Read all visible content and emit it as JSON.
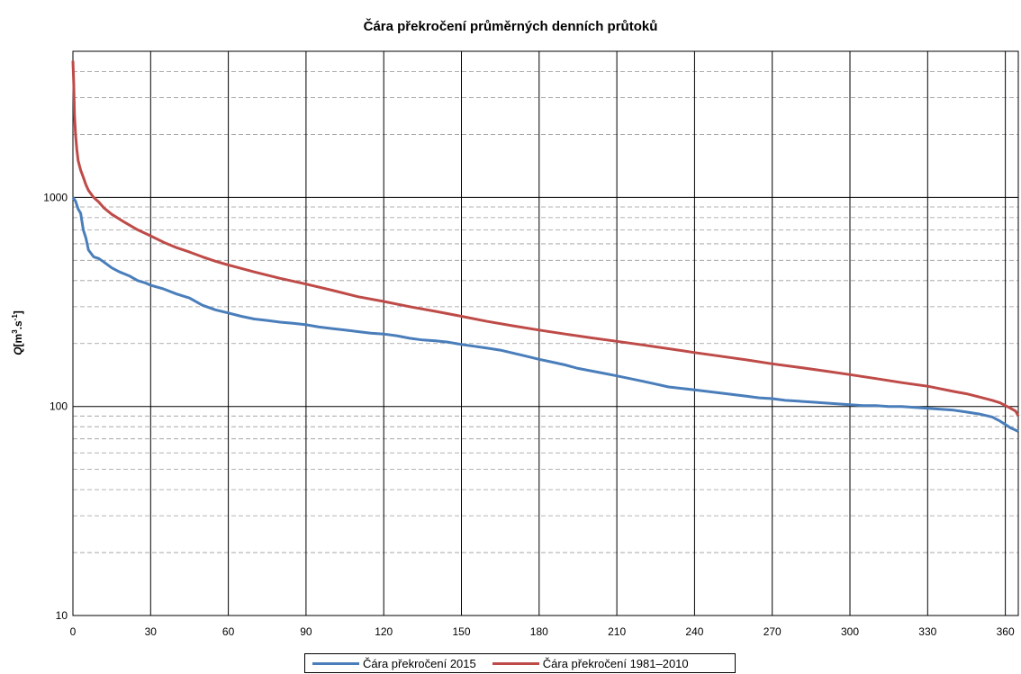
{
  "chart_data": {
    "type": "line",
    "title": "Čára překročení průměrných denních průtoků",
    "ylabel_main": "Q",
    "ylabel_unit_a": "[m",
    "ylabel_sup_a": "3",
    "ylabel_unit_b": ".s",
    "ylabel_sup_b": "-1",
    "ylabel_unit_c": "]",
    "y_scale": "log",
    "ylim": [
      10,
      5000
    ],
    "xlim": [
      0,
      365
    ],
    "x_ticks": [
      0,
      30,
      60,
      90,
      120,
      150,
      180,
      210,
      240,
      270,
      300,
      330,
      360
    ],
    "x_tick_labels": [
      "0",
      "30",
      "60",
      "90",
      "120",
      "150",
      "180",
      "210",
      "240",
      "270",
      "300",
      "330",
      "360"
    ],
    "y_ticks": [
      10,
      100,
      1000
    ],
    "y_tick_labels": [
      "10",
      "100",
      "1000"
    ],
    "grid": true,
    "legend_position": "bottom",
    "series": [
      {
        "name": "Čára překročení 2015",
        "color": "#4a7ebb",
        "x": [
          0,
          1,
          2,
          3,
          4,
          5,
          6,
          8,
          10,
          12,
          15,
          18,
          20,
          22,
          25,
          28,
          30,
          35,
          40,
          45,
          50,
          55,
          60,
          65,
          70,
          75,
          80,
          85,
          90,
          95,
          100,
          105,
          110,
          115,
          120,
          125,
          130,
          135,
          140,
          145,
          150,
          155,
          160,
          165,
          170,
          175,
          180,
          185,
          190,
          195,
          200,
          205,
          210,
          215,
          220,
          225,
          230,
          235,
          240,
          245,
          250,
          255,
          260,
          265,
          270,
          275,
          280,
          285,
          290,
          295,
          300,
          305,
          310,
          315,
          320,
          325,
          330,
          335,
          340,
          345,
          350,
          355,
          358,
          360,
          362,
          365
        ],
        "values": [
          1000,
          960,
          880,
          840,
          700,
          640,
          560,
          520,
          510,
          490,
          460,
          440,
          430,
          420,
          400,
          390,
          380,
          365,
          345,
          330,
          305,
          290,
          280,
          270,
          262,
          258,
          253,
          250,
          246,
          240,
          236,
          232,
          228,
          224,
          222,
          218,
          212,
          208,
          206,
          203,
          198,
          194,
          190,
          186,
          180,
          174,
          168,
          163,
          158,
          152,
          148,
          144,
          140,
          136,
          132,
          128,
          124,
          122,
          120,
          118,
          116,
          114,
          112,
          110,
          109,
          107,
          106,
          105,
          104,
          103,
          102,
          101,
          101,
          100,
          100,
          99,
          98,
          97,
          96,
          94,
          92,
          89,
          85,
          82,
          79,
          76
        ]
      },
      {
        "name": "Čára překročení 1981–2010",
        "color": "#be4b48",
        "x": [
          0,
          0.3,
          0.6,
          1,
          1.5,
          2,
          3,
          4,
          5,
          6,
          8,
          10,
          12,
          15,
          20,
          25,
          30,
          35,
          40,
          45,
          50,
          55,
          60,
          70,
          80,
          90,
          100,
          110,
          120,
          130,
          140,
          150,
          160,
          170,
          180,
          190,
          200,
          210,
          220,
          230,
          240,
          250,
          260,
          270,
          280,
          290,
          300,
          310,
          320,
          330,
          340,
          345,
          350,
          355,
          358,
          360,
          362,
          364,
          365
        ],
        "values": [
          4500,
          3500,
          2500,
          2000,
          1700,
          1500,
          1350,
          1250,
          1150,
          1080,
          1000,
          950,
          890,
          830,
          760,
          700,
          655,
          610,
          575,
          548,
          520,
          495,
          475,
          440,
          410,
          385,
          360,
          335,
          318,
          300,
          285,
          270,
          255,
          243,
          232,
          222,
          213,
          205,
          197,
          189,
          181,
          174,
          167,
          160,
          154,
          148,
          142,
          136,
          130,
          125,
          118,
          115,
          111,
          107,
          104,
          101,
          98,
          95,
          90
        ]
      }
    ]
  }
}
